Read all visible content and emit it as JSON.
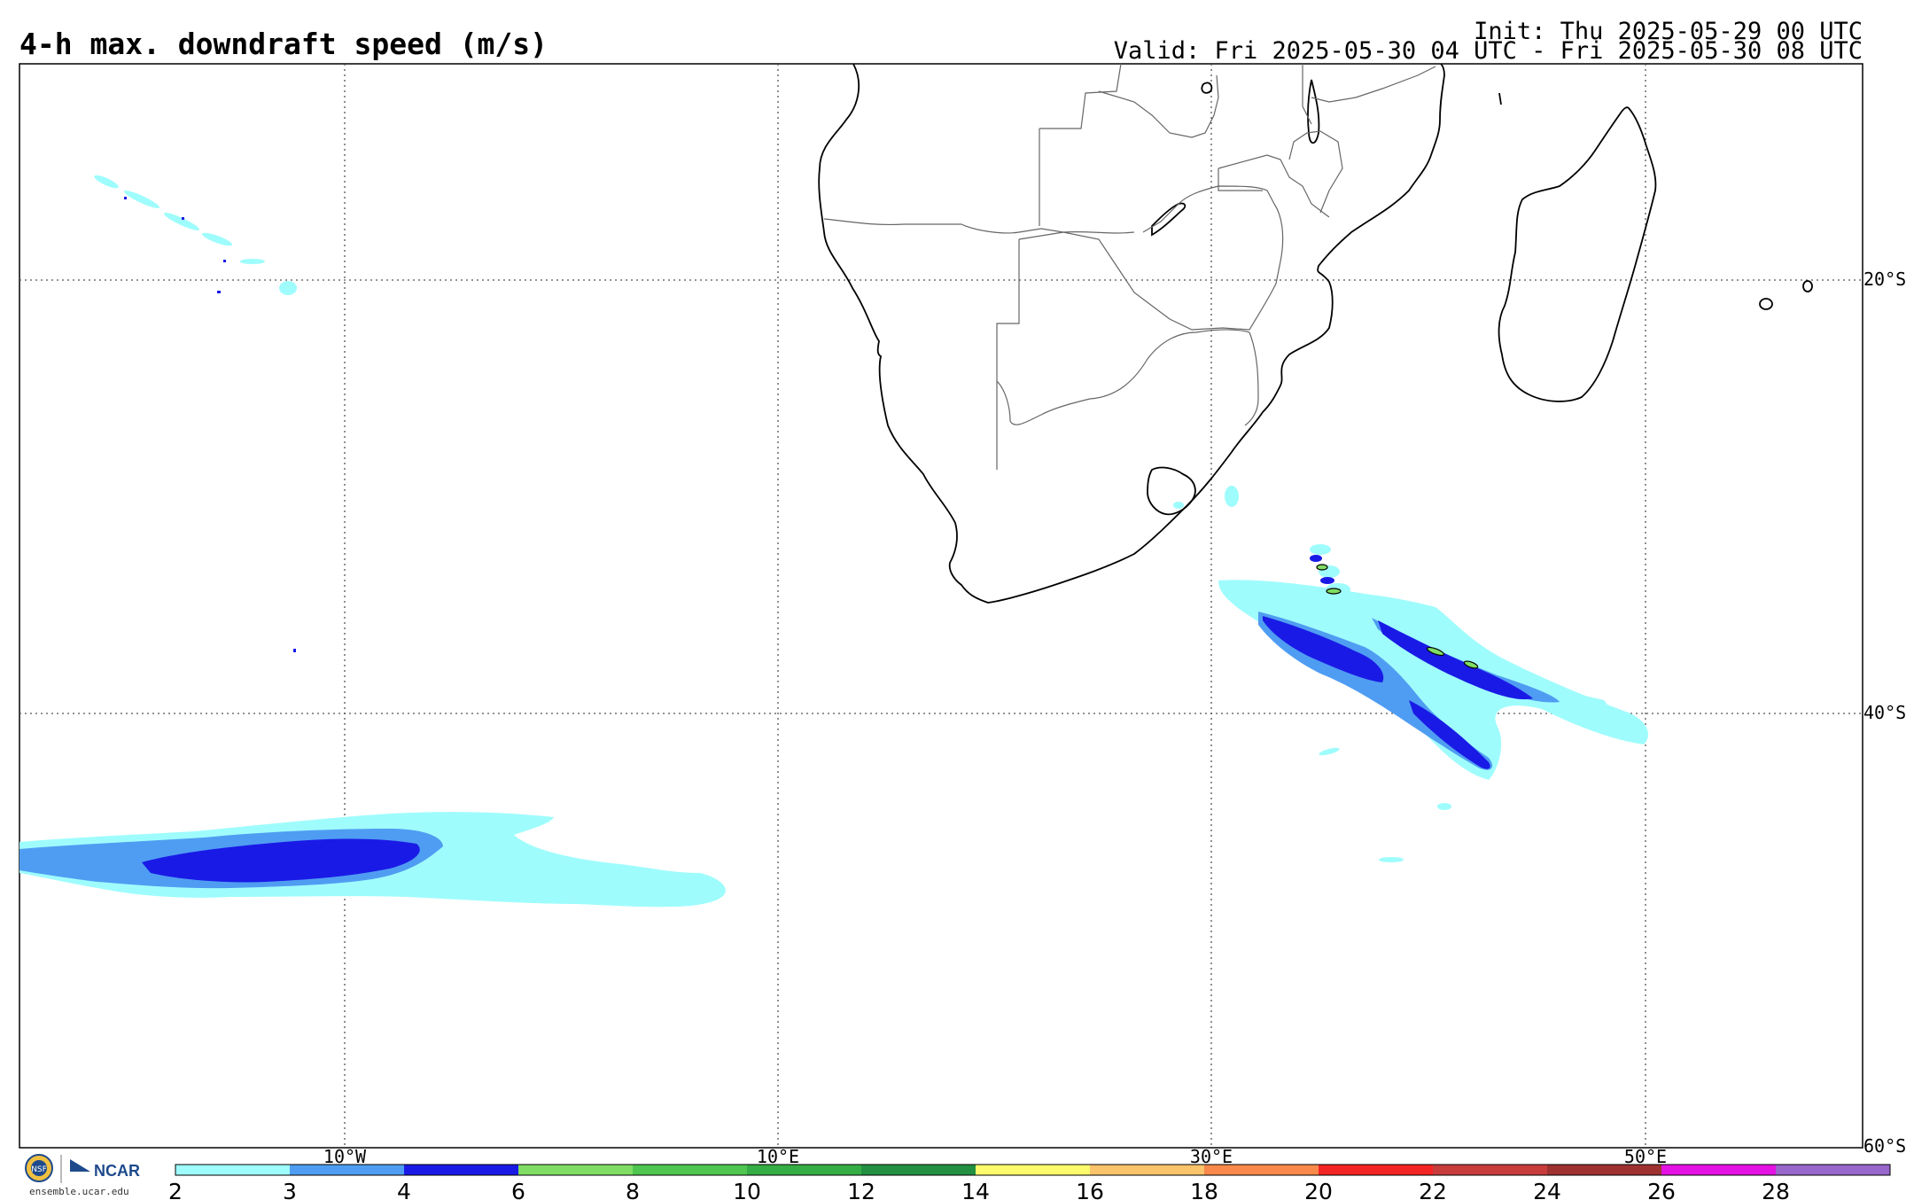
{
  "header": {
    "title": "4-h max. downdraft speed (m/s)",
    "init": "Init: Thu 2025-05-29 00 UTC",
    "valid": "Valid: Fri 2025-05-30 04 UTC - Fri 2025-05-30 08 UTC"
  },
  "map": {
    "lon_labels": [
      "10°W",
      "10°E",
      "30°E",
      "50°E"
    ],
    "lat_labels": [
      "20°S",
      "40°S",
      "60°S"
    ]
  },
  "colorbar": {
    "labels": [
      "2",
      "3",
      "4",
      "6",
      "8",
      "10",
      "12",
      "14",
      "16",
      "18",
      "20",
      "22",
      "24",
      "26",
      "28"
    ],
    "colors": [
      "#9ffcfc",
      "#4f9df2",
      "#1a1ae6",
      "#7fdd63",
      "#4fc64f",
      "#35ad45",
      "#229040",
      "#fbfb6c",
      "#fcc46a",
      "#f8894a",
      "#f32424",
      "#c83c3c",
      "#9f3131",
      "#e312e3",
      "#9966cc"
    ]
  },
  "footer": {
    "logo_text": "NCAR",
    "logo_emblem": "NSF",
    "site": "ensemble.ucar.edu"
  }
}
